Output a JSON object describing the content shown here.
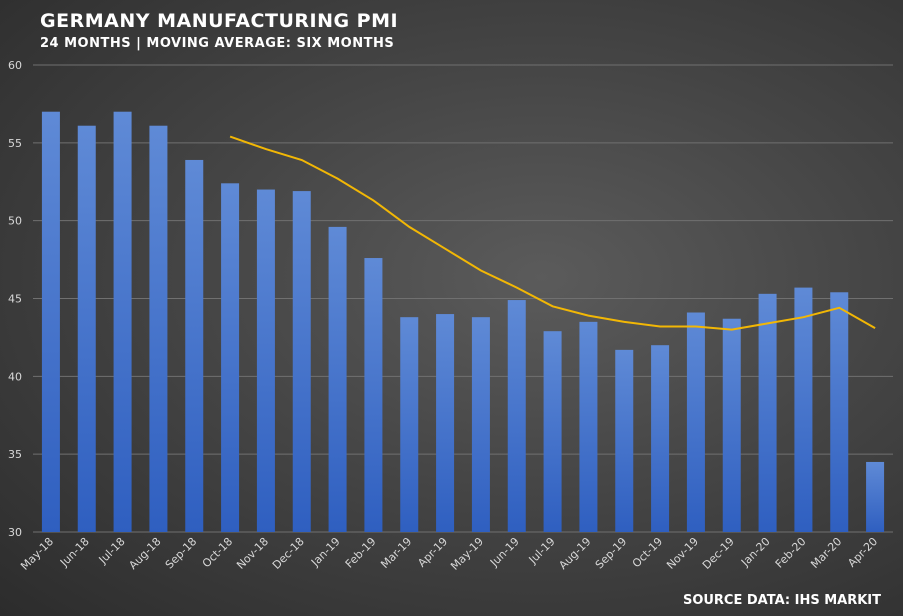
{
  "header": {
    "title": "GERMANY MANUFACTURING PMI",
    "subtitle": "24 MONTHS | MOVING AVERAGE: SIX MONTHS"
  },
  "footer": {
    "source": "SOURCE DATA: IHS MARKIT"
  },
  "colors": {
    "bar": "#4472c4",
    "bar_light": "#5b86d3",
    "moving_average": "#f2b705",
    "grid": "#707070"
  },
  "chart_data": {
    "type": "bar",
    "categories": [
      "May-18",
      "Jun-18",
      "Jul-18",
      "Aug-18",
      "Sep-18",
      "Oct-18",
      "Nov-18",
      "Dec-18",
      "Jan-19",
      "Feb-19",
      "Mar-19",
      "Apr-19",
      "May-19",
      "Jun-19",
      "Jul-19",
      "Aug-19",
      "Sep-19",
      "Oct-19",
      "Nov-19",
      "Dec-19",
      "Jan-20",
      "Feb-20",
      "Mar-20",
      "Apr-20"
    ],
    "series": [
      {
        "type": "bar",
        "values": [
          57.0,
          56.1,
          57.0,
          56.1,
          53.9,
          52.4,
          52.0,
          51.9,
          49.6,
          47.6,
          43.8,
          44.0,
          43.8,
          44.9,
          42.9,
          43.5,
          41.7,
          42.0,
          44.1,
          43.7,
          45.3,
          45.7,
          45.4,
          34.5
        ]
      },
      {
        "type": "line",
        "values": [
          null,
          null,
          null,
          null,
          null,
          55.4,
          54.6,
          53.9,
          52.7,
          51.3,
          49.6,
          48.2,
          46.8,
          45.7,
          44.5,
          43.9,
          43.5,
          43.2,
          43.2,
          43.0,
          43.4,
          43.8,
          44.4,
          43.1
        ]
      }
    ],
    "ylim": [
      30,
      60
    ],
    "yticks": [
      30,
      35,
      40,
      45,
      50,
      55,
      60
    ],
    "grid": true
  }
}
